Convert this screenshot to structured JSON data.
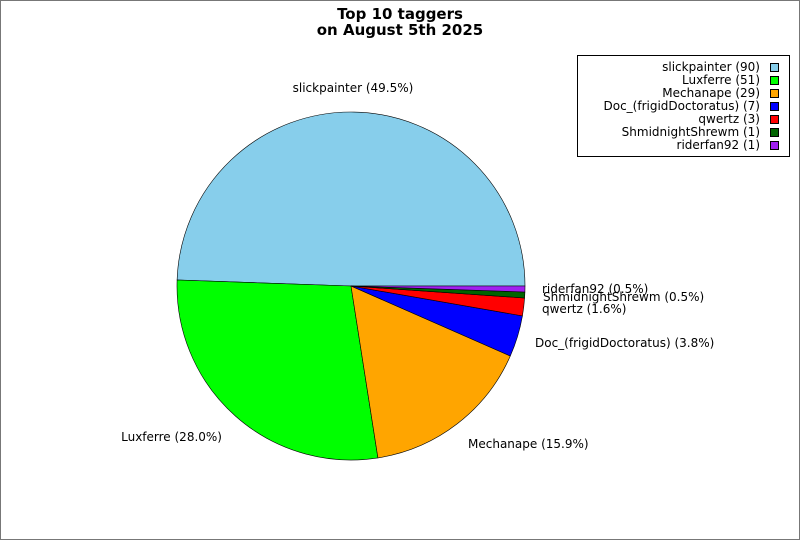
{
  "chart_data": {
    "type": "pie",
    "title": "Top 10 taggers",
    "subtitle": "on August 5th 2025",
    "slices": [
      {
        "label": "slickpainter",
        "value": 90,
        "percent": "49.5%",
        "color": "#87ceeb"
      },
      {
        "label": "Luxferre",
        "value": 51,
        "percent": "28.0%",
        "color": "#00ff00"
      },
      {
        "label": "Mechanape",
        "value": 29,
        "percent": "15.9%",
        "color": "#ffa500"
      },
      {
        "label": "Doc_(frigidDoctoratus)",
        "value": 7,
        "percent": "3.8%",
        "color": "#0000ff"
      },
      {
        "label": "qwertz",
        "value": 3,
        "percent": "1.6%",
        "color": "#ff0000"
      },
      {
        "label": "ShmidnightShrewm",
        "value": 1,
        "percent": "0.5%",
        "color": "#006400"
      },
      {
        "label": "riderfan92",
        "value": 1,
        "percent": "0.5%",
        "color": "#a020f0"
      }
    ],
    "legend_position": "top-right"
  }
}
